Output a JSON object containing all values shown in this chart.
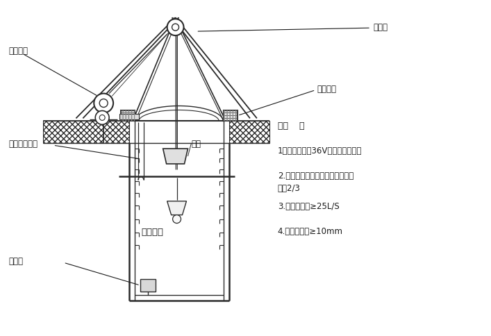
{
  "bg_color": "#ffffff",
  "lc": "#2a2a2a",
  "labels": {
    "steel_tube": "钢架管",
    "brick_well": "砖砌井圈",
    "electric_hoist": "电动葫芦",
    "fan_duct": "风机及送风管",
    "bucket": "吊桶",
    "light": "照明灯具",
    "pump": "潜水泵",
    "note_title": "说明    ：",
    "note1": "1：孔内照明为36V低电压电灯灯泡",
    "note2": "2.吊桶为皮桶，一次装土量不超过",
    "note2b": "容量2/3",
    "note3": "3.孔内送风量≥25L/S",
    "note4": "4.钢丝绳直径≥10mm"
  },
  "fs": 8.5,
  "fs_bold": 9.5
}
